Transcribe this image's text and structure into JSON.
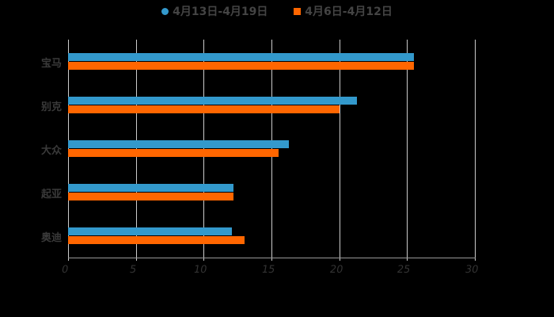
{
  "chart_data": {
    "type": "bar",
    "orientation": "horizontal",
    "title": "",
    "categories": [
      "宝马",
      "别克",
      "大众",
      "起亚",
      "奥迪"
    ],
    "series": [
      {
        "name": "4月13日-4月19日",
        "color": "#3399cc",
        "values": [
          25.5,
          21.3,
          16.3,
          12.2,
          12.1
        ]
      },
      {
        "name": "4月6日-4月12日",
        "color": "#ff6600",
        "values": [
          25.5,
          20.0,
          15.5,
          12.2,
          13.0
        ]
      }
    ],
    "xlabel": "",
    "ylabel": "",
    "xlim": [
      0,
      30
    ],
    "xticks": [
      "0",
      "5",
      "10",
      "15",
      "20",
      "25",
      "30"
    ],
    "grid": "vertical",
    "legend_position": "top"
  },
  "legend": {
    "item1": "4月13日-4月19日",
    "item2": "4月6日-4月12日"
  }
}
